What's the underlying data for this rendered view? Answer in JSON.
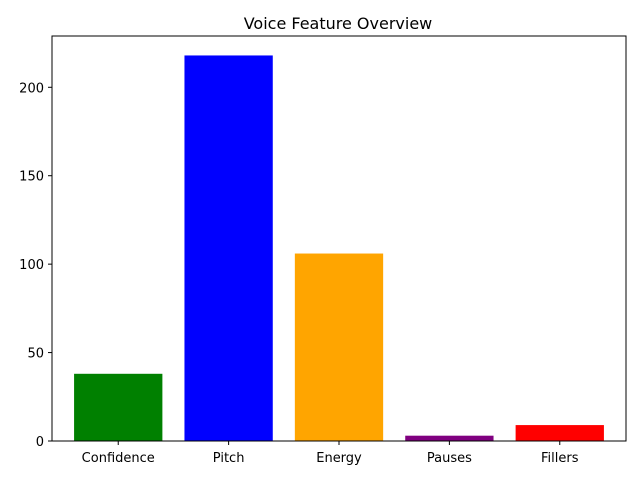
{
  "chart_data": {
    "type": "bar",
    "title": "Voice Feature Overview",
    "xlabel": "",
    "ylabel": "",
    "categories": [
      "Confidence",
      "Pitch",
      "Energy",
      "Pauses",
      "Fillers"
    ],
    "values": [
      38,
      218,
      106,
      3,
      9
    ],
    "colors": [
      "#008000",
      "#0000ff",
      "#ffa500",
      "#800080",
      "#ff0000"
    ],
    "ylim": [
      0,
      229
    ],
    "yticks": [
      0,
      50,
      100,
      150,
      200
    ],
    "grid": false,
    "legend": "none"
  }
}
